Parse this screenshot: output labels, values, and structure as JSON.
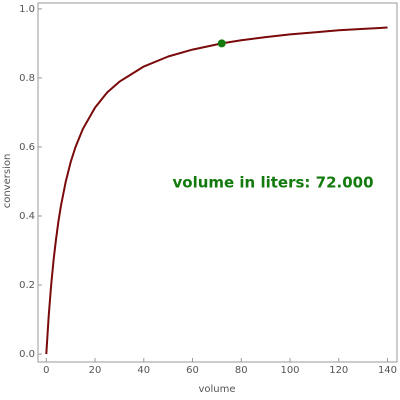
{
  "chart_data": {
    "type": "line",
    "x_label": "volume",
    "y_label": "conversion",
    "annotation": "volume in liters: 72.000",
    "annotation_color": "#137a0d",
    "x": [
      0,
      1,
      2,
      3,
      4,
      5,
      6,
      8,
      10,
      12,
      15,
      20,
      25,
      30,
      40,
      50,
      60,
      72,
      80,
      90,
      100,
      110,
      120,
      130,
      140
    ],
    "series": [
      {
        "name": "conversion",
        "color": "#7a0a0a",
        "values": [
          0,
          0.111,
          0.2,
          0.273,
          0.333,
          0.385,
          0.429,
          0.5,
          0.556,
          0.6,
          0.652,
          0.714,
          0.758,
          0.789,
          0.833,
          0.862,
          0.882,
          0.9,
          0.909,
          0.918,
          0.926,
          0.932,
          0.938,
          0.942,
          0.946
        ]
      }
    ],
    "point": {
      "x": 72,
      "y": 0.9,
      "color": "#137a0d"
    },
    "xlim": [
      -3.4,
      143.9
    ],
    "ylim": [
      -0.023,
      1.017
    ],
    "xticks": [
      0,
      20,
      40,
      60,
      80,
      100,
      120,
      140
    ],
    "yticks": [
      {
        "value": 0,
        "label": "0.0"
      },
      0.2,
      0.4,
      0.6,
      0.8,
      {
        "value": 1,
        "label": "1.0"
      }
    ]
  }
}
